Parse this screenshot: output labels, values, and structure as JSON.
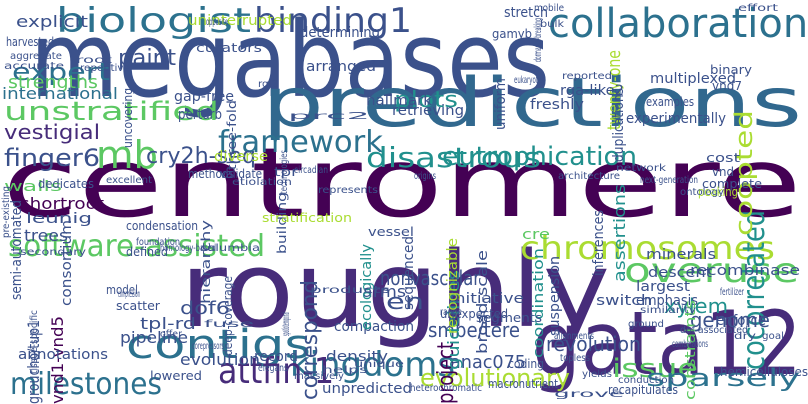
{
  "background": "#ffffff",
  "palette": [
    "#440154",
    "#472c7a",
    "#3b518b",
    "#2c718e",
    "#21908d",
    "#27ad81",
    "#5cc863",
    "#aadc32",
    "#fde725"
  ],
  "words": [
    {
      "text": "centromere",
      "color": "#440154",
      "rot": 0
    },
    {
      "text": "megabases",
      "color": "#3b518b",
      "rot": 0
    },
    {
      "text": "roughly",
      "color": "#472c7a",
      "rot": 0
    },
    {
      "text": "gata12",
      "color": "#472c7a",
      "rot": 0
    },
    {
      "text": "predictions",
      "color": "#31688e",
      "rot": 0
    },
    {
      "text": "collaboration",
      "color": "#2c718e",
      "rot": 0
    },
    {
      "text": "biologist",
      "color": "#2c728e",
      "rot": 0
    },
    {
      "text": "binding1",
      "color": "#3b518b",
      "rot": 0
    },
    {
      "text": "contigs",
      "color": "#2c718e",
      "rot": 0
    },
    {
      "text": "chromosomes",
      "color": "#aadc32",
      "rot": 0
    },
    {
      "text": "kingdoms",
      "color": "#2c728e",
      "rot": 0
    },
    {
      "text": "issue",
      "color": "#5cc863",
      "rot": 0
    },
    {
      "text": "sparsely",
      "color": "#2c728e",
      "rot": 0
    },
    {
      "text": "overuse",
      "color": "#5cc863",
      "rot": 0
    },
    {
      "text": "software-assisted",
      "color": "#5cc863",
      "rot": 0
    },
    {
      "text": "unstratified",
      "color": "#5cc863",
      "rot": 0
    },
    {
      "text": "framework",
      "color": "#2c718e",
      "rot": 0
    },
    {
      "text": "disastrous",
      "color": "#21908d",
      "rot": 0
    },
    {
      "text": "eutrophication",
      "color": "#21908d",
      "rot": 0
    },
    {
      "text": "mb",
      "color": "#5cc863",
      "rot": 0
    },
    {
      "text": "cocorrelated",
      "color": "#21908d",
      "rot": -90
    },
    {
      "text": "coopted",
      "color": "#aadc32",
      "rot": -90
    },
    {
      "text": "attfin-1",
      "color": "#472c7a",
      "rot": 0
    },
    {
      "text": "milestones",
      "color": "#2c718e",
      "rot": 0
    },
    {
      "text": "evolutionary",
      "color": "#aadc32",
      "rot": 0
    },
    {
      "text": "expert",
      "color": "#2c718e",
      "rot": 0
    },
    {
      "text": "paint",
      "color": "#3b518b",
      "rot": 0
    },
    {
      "text": "plots",
      "color": "#21908d",
      "rot": 0
    },
    {
      "text": "cry2h-seq",
      "color": "#3b518b",
      "rot": 0
    },
    {
      "text": "finger6",
      "color": "#3b518b",
      "rot": 0
    },
    {
      "text": "vestigial",
      "color": "#472c7a",
      "rot": 0
    },
    {
      "text": "strengths",
      "color": "#5cc863",
      "rot": 0
    },
    {
      "text": "international",
      "color": "#2c718e",
      "rot": 0
    },
    {
      "text": "explicit",
      "color": "#3b518b",
      "rot": 0
    },
    {
      "text": "revolution",
      "color": "#3b518b",
      "rot": 0
    },
    {
      "text": "nonvascular",
      "color": "#3b518b",
      "rot": 0
    },
    {
      "text": "project",
      "color": "#440154",
      "rot": -90
    },
    {
      "text": "correspond",
      "color": "#3b518b",
      "rot": -90
    },
    {
      "text": "en",
      "color": "#3b518b",
      "rot": 0
    },
    {
      "text": "smbe/tere",
      "color": "#3b518b",
      "rot": 0
    },
    {
      "text": "xylem",
      "color": "#21908d",
      "rot": 0
    },
    {
      "text": "genome",
      "color": "#3b518b",
      "rot": 0
    },
    {
      "text": "anac075",
      "color": "#3b518b",
      "rot": 0
    },
    {
      "text": "twenty-one",
      "color": "#aadc32",
      "rot": -90
    },
    {
      "text": "collaboration",
      "color": "#2c718e",
      "rot": 0
    },
    {
      "text": "assertions",
      "color": "#21908d",
      "rot": -90
    },
    {
      "text": "guidelines",
      "color": "#21908d",
      "rot": -90
    },
    {
      "text": "arms",
      "color": "#3b518b",
      "rot": 0
    },
    {
      "text": "groucho/tup1",
      "color": "#3b518b",
      "rot": -90
    },
    {
      "text": "vnd1-vnd5",
      "color": "#440154",
      "rot": -90
    },
    {
      "text": "dof6",
      "color": "#3b518b",
      "rot": 0
    },
    {
      "text": "tpl-rd",
      "color": "#3b518b",
      "rot": 0
    },
    {
      "text": "pipeline",
      "color": "#3b518b",
      "rot": 0
    },
    {
      "text": "annotations",
      "color": "#3b518b",
      "rot": 0
    },
    {
      "text": "evolution",
      "color": "#3b518b",
      "rot": 0
    },
    {
      "text": "record",
      "color": "#3b518b",
      "rot": 0
    },
    {
      "text": "density",
      "color": "#3b518b",
      "rot": 0
    },
    {
      "text": "unpredicted",
      "color": "#3b518b",
      "rot": 0
    },
    {
      "text": "compaction",
      "color": "#3b518b",
      "rot": 0
    },
    {
      "text": "leunig",
      "color": "#3b518b",
      "rot": 0
    },
    {
      "text": "shortroot",
      "color": "#440154",
      "rot": 0
    },
    {
      "text": "trees",
      "color": "#3b518b",
      "rot": 0
    },
    {
      "text": "semi-automated",
      "color": "#3b518b",
      "rot": -90
    },
    {
      "text": "consortium",
      "color": "#3b518b",
      "rot": -90
    },
    {
      "text": "cre",
      "color": "#5cc863",
      "rot": 0
    },
    {
      "text": "coordination",
      "color": "#21908d",
      "rot": -90
    },
    {
      "text": "inferences",
      "color": "#3b518b",
      "rot": -90
    },
    {
      "text": "minerals",
      "color": "#3b518b",
      "rot": 0
    },
    {
      "text": "descent",
      "color": "#3b518b",
      "rot": 0
    },
    {
      "text": "recombinase",
      "color": "#3b518b",
      "rot": 0
    },
    {
      "text": "largest",
      "color": "#3b518b",
      "rot": 0
    },
    {
      "text": "emphasis",
      "color": "#3b518b",
      "rot": 0
    },
    {
      "text": "enforce",
      "color": "#3b518b",
      "rot": 0
    },
    {
      "text": "constraints",
      "color": "#5cc863",
      "rot": -90
    },
    {
      "text": "switch",
      "color": "#3b518b",
      "rot": 0
    },
    {
      "text": "initiative",
      "color": "#3b518b",
      "rot": 0
    },
    {
      "text": "sequenced",
      "color": "#3b518b",
      "rot": -90
    },
    {
      "text": "ecologically",
      "color": "#21908d",
      "rot": -90
    },
    {
      "text": "recognizable",
      "color": "#aadc32",
      "rot": -90
    },
    {
      "text": "broad-scale",
      "color": "#3b518b",
      "rot": -90
    },
    {
      "text": "suspension",
      "color": "#3b518b",
      "rot": -90
    },
    {
      "text": "duplications",
      "color": "#3b518b",
      "rot": -90
    },
    {
      "text": "freshly",
      "color": "#3b518b",
      "rot": 0
    },
    {
      "text": "retrieving",
      "color": "#3b518b",
      "rot": 0
    },
    {
      "text": "hallmark",
      "color": "#3b518b",
      "rot": 0
    },
    {
      "text": "experimentally",
      "color": "#3b518b",
      "rot": 0
    },
    {
      "text": "multiplexed",
      "color": "#3b518b",
      "rot": 0
    },
    {
      "text": "rga-like2",
      "color": "#3b518b",
      "rot": 0
    },
    {
      "text": "uniform",
      "color": "#3b518b",
      "rot": -90
    },
    {
      "text": "arranged",
      "color": "#3b518b",
      "rot": 0
    },
    {
      "text": "curators",
      "color": "#3b518b",
      "rot": 0
    },
    {
      "text": "uninterrupted",
      "color": "#aadc32",
      "rot": 0
    },
    {
      "text": "determining",
      "color": "#3b518b",
      "rot": 0
    },
    {
      "text": "three-fold",
      "color": "#3b518b",
      "rot": -90
    },
    {
      "text": "gap-free",
      "color": "#3b518b",
      "rot": 0
    },
    {
      "text": "perturb",
      "color": "#3b518b",
      "rot": 0
    },
    {
      "text": "diverse",
      "color": "#aadc32",
      "rot": 0
    },
    {
      "text": "methods",
      "color": "#3b518b",
      "rot": 0
    },
    {
      "text": "walls",
      "color": "#5cc863",
      "rot": 0
    },
    {
      "text": "dedicates",
      "color": "#3b518b",
      "rot": 0
    },
    {
      "text": "excellent",
      "color": "#3b518b",
      "rot": 0
    },
    {
      "text": "validate",
      "color": "#3b518b",
      "rot": 0
    },
    {
      "text": "tpr",
      "color": "#3b518b",
      "rot": 0
    },
    {
      "text": "building",
      "color": "#3b518b",
      "rot": -90
    },
    {
      "text": "stratification",
      "color": "#aadc32",
      "rot": 0
    },
    {
      "text": "condensation",
      "color": "#3b518b",
      "rot": 0
    },
    {
      "text": "hierarchy",
      "color": "#3b518b",
      "rot": -90
    },
    {
      "text": "defined",
      "color": "#3b518b",
      "rot": 0
    },
    {
      "text": "deep-coverage",
      "color": "#3b518b",
      "rot": -90
    },
    {
      "text": "model",
      "color": "#3b518b",
      "rot": 0
    },
    {
      "text": "scatter",
      "color": "#3b518b",
      "rot": 0
    },
    {
      "text": "cost",
      "color": "#3b518b",
      "rot": 0
    },
    {
      "text": "vnd",
      "color": "#3b518b",
      "rot": 0
    },
    {
      "text": "complete",
      "color": "#3b518b",
      "rot": 0
    },
    {
      "text": "vessel",
      "color": "#3b518b",
      "rot": 0
    },
    {
      "text": "unexpected",
      "color": "#3b518b",
      "rot": 0
    },
    {
      "text": "segments",
      "color": "#3b518b",
      "rot": 0
    },
    {
      "text": "hemicelluloses",
      "color": "#3b518b",
      "rot": 0
    },
    {
      "text": "coding",
      "color": "#3b518b",
      "rot": 0
    },
    {
      "text": "stretch",
      "color": "#3b518b",
      "rot": 0
    },
    {
      "text": "gamyb",
      "color": "#3b518b",
      "rot": 0
    },
    {
      "text": "bulk",
      "color": "#3b518b",
      "rot": 0
    },
    {
      "text": "binary",
      "color": "#3b518b",
      "rot": 0
    },
    {
      "text": "vnd7",
      "color": "#3b518b",
      "rot": 0
    },
    {
      "text": "examples",
      "color": "#3b518b",
      "rot": 0
    },
    {
      "text": "harvested",
      "color": "#3b518b",
      "rot": 0
    },
    {
      "text": "aggregate",
      "color": "#3b518b",
      "rot": 0
    },
    {
      "text": "uncovering",
      "color": "#3b518b",
      "rot": -90
    },
    {
      "text": "peaking",
      "color": "#aadc32",
      "rot": 0
    },
    {
      "text": "repetitive",
      "color": "#3b518b",
      "rot": 0
    },
    {
      "text": "lowered",
      "color": "#3b518b",
      "rot": 0
    },
    {
      "text": "massively",
      "color": "#3b518b",
      "rot": 0
    },
    {
      "text": "heterochromatic",
      "color": "#3b518b",
      "rot": 0
    },
    {
      "text": "macronutrient",
      "color": "#3b518b",
      "rot": 0
    },
    {
      "text": "recapitulates",
      "color": "#3b518b",
      "rot": 0
    },
    {
      "text": "conduction",
      "color": "#3b518b",
      "rot": 0
    },
    {
      "text": "yields",
      "color": "#3b518b",
      "rot": 0
    },
    {
      "text": "topless",
      "color": "#3b518b",
      "rot": 0
    },
    {
      "text": "alignments",
      "color": "#3b518b",
      "rot": 0
    },
    {
      "text": "ground",
      "color": "#3b518b",
      "rot": 0
    },
    {
      "text": "similarity",
      "color": "#3b518b",
      "rot": 0
    },
    {
      "text": "combinations",
      "color": "#3b518b",
      "rot": 0
    },
    {
      "text": "dof-associated",
      "color": "#3b518b",
      "rot": 0
    },
    {
      "text": "dry",
      "color": "#3b518b",
      "rot": 0
    },
    {
      "text": "goal",
      "color": "#3b518b",
      "rot": 0
    },
    {
      "text": "ontology",
      "color": "#3b518b",
      "rot": 0
    },
    {
      "text": "next-generation",
      "color": "#3b518b",
      "rot": 0
    },
    {
      "text": "architecture",
      "color": "#3b518b",
      "rot": 0
    },
    {
      "text": "etiolation",
      "color": "#3b518b",
      "rot": 0
    },
    {
      "text": "represents",
      "color": "#3b518b",
      "rot": 0
    },
    {
      "text": "products",
      "color": "#3b518b",
      "rot": 0
    },
    {
      "text": "spatiotemporal",
      "color": "#3b518b",
      "rot": -90
    },
    {
      "text": "range",
      "color": "#3b518b",
      "rot": 0
    },
    {
      "text": "fuse",
      "color": "#3b518b",
      "rot": 0
    },
    {
      "text": "corepressors",
      "color": "#3b518b",
      "rot": 0
    },
    {
      "text": "elegans",
      "color": "#3b518b",
      "rot": 0
    },
    {
      "text": "unique",
      "color": "#3b518b",
      "rot": 0
    },
    {
      "text": "secondary",
      "color": "#3b518b",
      "rot": 0
    },
    {
      "text": "tissue-specific",
      "color": "#3b518b",
      "rot": -90
    },
    {
      "text": "pre-existing",
      "color": "#3b518b",
      "rot": -90
    },
    {
      "text": "foundation",
      "color": "#3b518b",
      "rot": 0
    },
    {
      "text": "columbia",
      "color": "#3b518b",
      "rot": 0
    },
    {
      "text": "technologies",
      "color": "#3b518b",
      "rot": -90
    },
    {
      "text": "opposite",
      "color": "#3b518b",
      "rot": 0
    },
    {
      "text": "rgl2",
      "color": "#3b518b",
      "rot": 0
    },
    {
      "text": "prc2",
      "color": "#3b518b",
      "rot": 0
    },
    {
      "text": "dormancy-breaking",
      "color": "#3b518b",
      "rot": -90
    },
    {
      "text": "reported",
      "color": "#3b518b",
      "rot": 0
    },
    {
      "text": "eukaryotes",
      "color": "#3b518b",
      "rot": 0
    },
    {
      "text": "mobile",
      "color": "#3b518b",
      "rot": 0
    },
    {
      "text": "effort",
      "color": "#3b518b",
      "rot": 0
    },
    {
      "text": "network",
      "color": "#3b518b",
      "rot": 0
    },
    {
      "text": "circadian",
      "color": "#3b518b",
      "rot": 0
    },
    {
      "text": "origins",
      "color": "#3b518b",
      "rot": 0
    },
    {
      "text": "root",
      "color": "#3b518b",
      "rot": 0
    },
    {
      "text": "accurate",
      "color": "#3b518b",
      "rot": 0
    },
    {
      "text": "homology-based",
      "color": "#3b518b",
      "rot": 0
    },
    {
      "text": "compression",
      "color": "#3b518b",
      "rot": 0
    },
    {
      "text": "offer",
      "color": "#3b518b",
      "rot": 0
    },
    {
      "text": "helps",
      "color": "#3b518b",
      "rot": 0
    },
    {
      "text": "fertilizer",
      "color": "#3b518b",
      "rot": 0
    },
    {
      "text": "grove",
      "color": "#3b518b",
      "rot": 0
    },
    {
      "text": "vascular-related",
      "color": "#3b518b",
      "rot": 0
    }
  ]
}
